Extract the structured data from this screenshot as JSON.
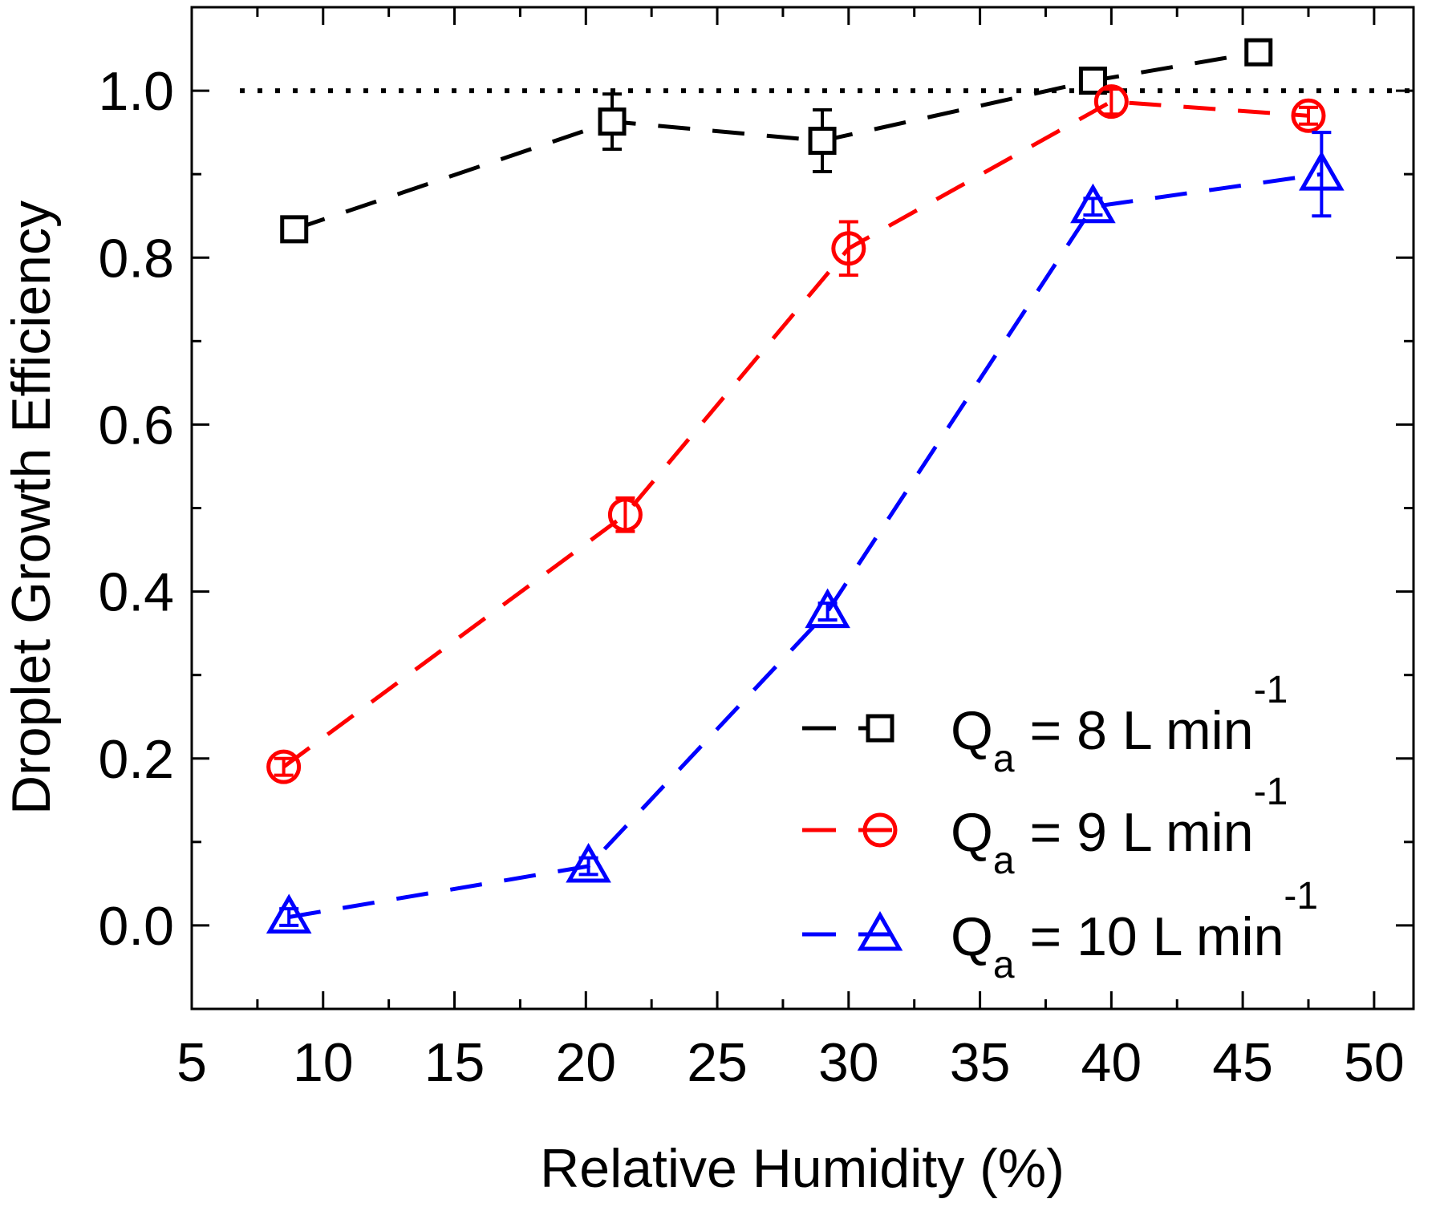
{
  "chart_data": {
    "type": "scatter",
    "title": "",
    "xlabel": "Relative Humidity (%)",
    "ylabel": "Droplet Growth Efficiency",
    "xlim": [
      5,
      51.5
    ],
    "ylim": [
      -0.1,
      1.1
    ],
    "xticks": [
      5,
      10,
      15,
      20,
      25,
      30,
      35,
      40,
      45,
      50
    ],
    "yticks": [
      0.0,
      0.2,
      0.4,
      0.6,
      0.8,
      1.0
    ],
    "ytick_labels": [
      "0.0",
      "0.2",
      "0.4",
      "0.6",
      "0.8",
      "1.0"
    ],
    "grid": false,
    "reference_line": {
      "y": 1.0,
      "style": "dotted",
      "color": "#000000"
    },
    "legend_position": "bottom-right",
    "series": [
      {
        "name": "Q_a = 8 L min^-1",
        "label_main": "Q",
        "label_sub": "a",
        "label_rest": " = 8 L min",
        "label_sup": "-1",
        "color": "#000000",
        "marker": "square",
        "x": [
          8.9,
          21.0,
          29.0,
          39.3,
          45.6
        ],
        "y": [
          0.834,
          0.963,
          0.94,
          1.012,
          1.046
        ],
        "err": [
          0.01,
          0.033,
          0.037,
          0.01,
          0.012
        ]
      },
      {
        "name": "Q_a = 9 L min^-1",
        "label_main": "Q",
        "label_sub": "a",
        "label_rest": " = 9 L min",
        "label_sup": "-1",
        "color": "#ff0000",
        "marker": "circle",
        "x": [
          8.5,
          21.5,
          30.0,
          40.0,
          47.5
        ],
        "y": [
          0.19,
          0.492,
          0.811,
          0.987,
          0.97
        ],
        "err": [
          0.01,
          0.02,
          0.032,
          0.015,
          0.01
        ]
      },
      {
        "name": "Q_a = 10 L min^-1",
        "label_main": "Q",
        "label_sub": "a",
        "label_rest": " = 10 L min",
        "label_sup": "-1",
        "color": "#0000ff",
        "marker": "triangle",
        "x": [
          8.7,
          20.1,
          29.2,
          39.3,
          48.0
        ],
        "y": [
          0.01,
          0.071,
          0.376,
          0.861,
          0.9
        ],
        "err": [
          0.01,
          0.01,
          0.01,
          0.01,
          0.05
        ]
      }
    ]
  }
}
